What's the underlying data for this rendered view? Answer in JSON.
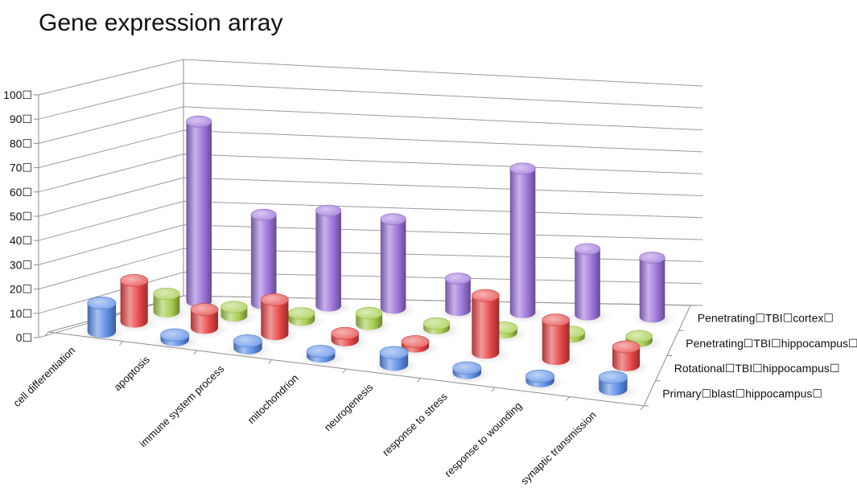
{
  "chart_data": {
    "type": "bar",
    "style": "3d-cylinder",
    "title": "Gene expression array",
    "categories": [
      "cell differentiation",
      "apoptosis",
      "immune system process",
      "mitochondrion",
      "neurogenesis",
      "response to stress",
      "response to wounding",
      "synaptic transmission"
    ],
    "series": [
      {
        "name": "Primary☐blast☐hippocampus☐",
        "color": "#5b8ee6",
        "values": [
          12,
          2,
          3,
          0,
          5,
          0,
          0,
          5
        ]
      },
      {
        "name": "Rotational☐TBI☐hippocampus☐",
        "color": "#e64646",
        "values": [
          18,
          8,
          15,
          3,
          0,
          25,
          17,
          8
        ]
      },
      {
        "name": "Penetrating☐TBI☐hippocampus☐",
        "color": "#a4cc4c",
        "values": [
          8,
          4,
          3,
          5,
          0,
          2,
          1,
          1
        ]
      },
      {
        "name": "Penetrating☐TBI☐cortex☐",
        "color": "#9b73d9",
        "values": [
          85,
          42,
          45,
          42,
          15,
          68,
          31,
          28
        ]
      }
    ],
    "yticks": [
      "0☐",
      "10☐",
      "20☐",
      "30☐",
      "40☐",
      "50☐",
      "60☐",
      "70☐",
      "80☐",
      "90☐",
      "100☐"
    ],
    "ylim": [
      0,
      100
    ],
    "grid": true,
    "legend": "series labels on depth axis (right)"
  }
}
